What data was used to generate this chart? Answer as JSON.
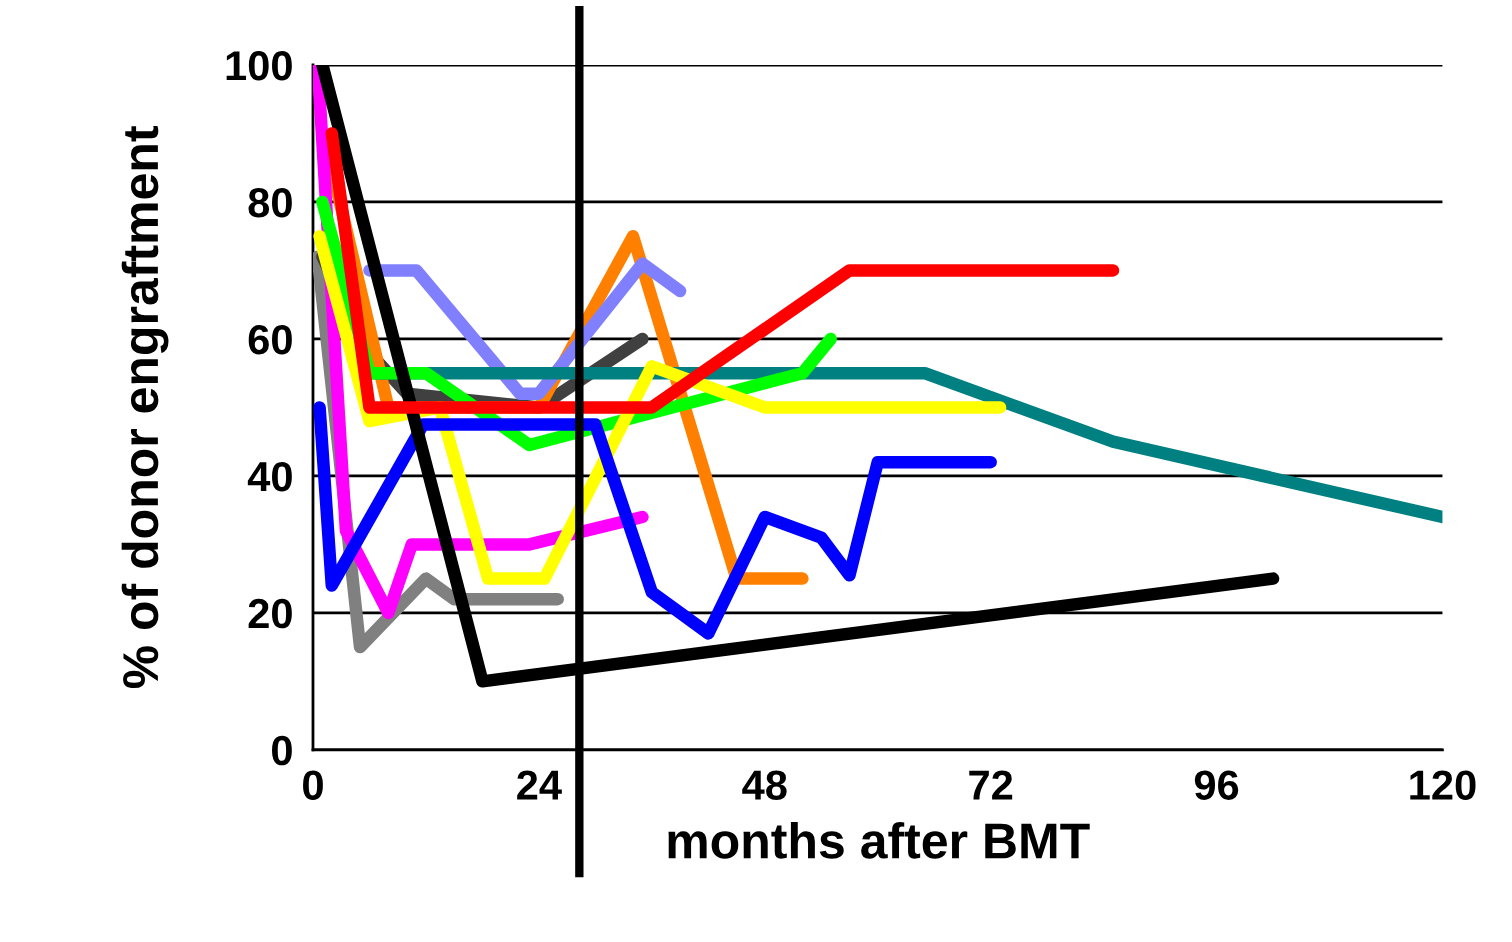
{
  "chart_data": {
    "type": "line",
    "xlabel": "months after BMT",
    "ylabel": "% of donor engraftment",
    "xlim": [
      0,
      120
    ],
    "xticks": [
      0,
      24,
      48,
      72,
      96,
      120
    ],
    "ylim": [
      0,
      100
    ],
    "yticks": [
      0,
      20,
      40,
      60,
      80,
      100
    ],
    "grid": "y",
    "marker": "none",
    "line_style": "solid",
    "ref_lines": [
      {
        "axis": "x",
        "value": 28.3,
        "color": "#000000",
        "line_style": "solid"
      }
    ],
    "series": [
      {
        "color": "#808080",
        "x": [
          0.5,
          5,
          12,
          15,
          26
        ],
        "values": [
          72,
          15,
          25,
          22,
          22
        ]
      },
      {
        "color": "#404040",
        "x": [
          1,
          6,
          10,
          24,
          35
        ],
        "values": [
          72,
          58,
          52,
          50,
          60
        ]
      },
      {
        "color": "#ff8000",
        "x": [
          2,
          8,
          24,
          34,
          45,
          52
        ],
        "values": [
          85,
          50,
          50,
          75,
          25,
          25
        ]
      },
      {
        "color": "#8080ff",
        "x": [
          6,
          11,
          22,
          24,
          35,
          39
        ],
        "values": [
          70,
          70,
          52,
          52,
          71,
          67
        ]
      },
      {
        "color": "#ff00ff",
        "x": [
          0.5,
          3.5,
          8,
          10.5,
          23,
          35
        ],
        "values": [
          100,
          32,
          20,
          30,
          30,
          34
        ]
      },
      {
        "color": "#008080",
        "x": [
          6,
          65,
          85,
          120
        ],
        "values": [
          55,
          55,
          45,
          34
        ]
      },
      {
        "color": "#00ff00",
        "x": [
          1,
          6,
          12,
          23,
          52,
          55
        ],
        "values": [
          80,
          55,
          55,
          44.5,
          55,
          60
        ]
      },
      {
        "color": "#ffff00",
        "x": [
          0.7,
          6,
          13.5,
          18.6,
          24.6,
          36,
          48,
          73
        ],
        "values": [
          75,
          48,
          50,
          25,
          25,
          56,
          50,
          50
        ]
      },
      {
        "color": "#0000ff",
        "x": [
          0.7,
          2,
          11.7,
          30,
          36,
          42,
          48,
          54,
          57,
          60,
          72
        ],
        "values": [
          50,
          24,
          47.5,
          47.5,
          23,
          17,
          34,
          31,
          25.5,
          42,
          42
        ]
      },
      {
        "color": "#000000",
        "x": [
          1,
          18,
          102
        ],
        "values": [
          100,
          10,
          25
        ]
      },
      {
        "color": "#ff0000",
        "x": [
          2,
          6,
          36,
          57,
          85
        ],
        "values": [
          90,
          50,
          50,
          70,
          70
        ]
      }
    ]
  }
}
